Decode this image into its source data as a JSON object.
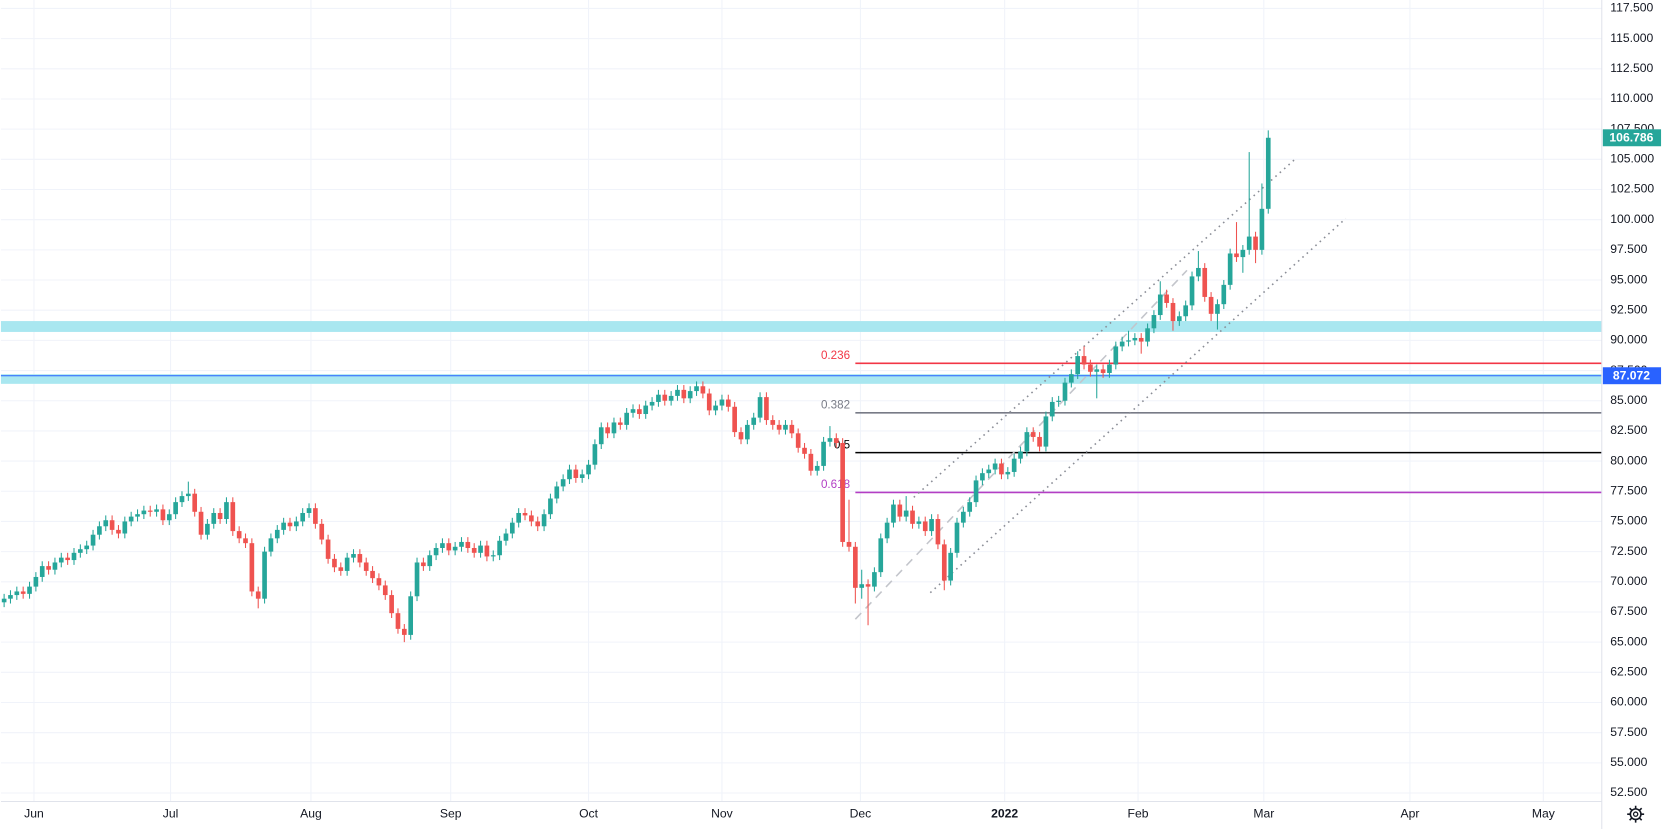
{
  "chart_data": {
    "type": "candlestick",
    "up_color": "#26a69a",
    "down_color": "#ef5350",
    "grid": true,
    "xlim": [
      -0.5,
      251.5
    ],
    "xticks": [
      {
        "value": 4.7,
        "label": "Jun"
      },
      {
        "value": 26.2,
        "label": "Jul"
      },
      {
        "value": 48.3,
        "label": "Aug"
      },
      {
        "value": 70.3,
        "label": "Sep"
      },
      {
        "value": 92,
        "label": "Oct"
      },
      {
        "value": 113,
        "label": "Nov"
      },
      {
        "value": 134.8,
        "label": "Dec"
      },
      {
        "value": 157.5,
        "label": "2022"
      },
      {
        "value": 178.5,
        "label": "Feb"
      },
      {
        "value": 198.3,
        "label": "Mar"
      },
      {
        "value": 221.3,
        "label": "Apr"
      },
      {
        "value": 242.3,
        "label": "May"
      }
    ],
    "ylim": [
      51.8,
      118.2
    ],
    "yticks": [
      {
        "value": 52.5,
        "label": "52.500"
      },
      {
        "value": 55,
        "label": "55.000"
      },
      {
        "value": 57.5,
        "label": "57.500"
      },
      {
        "value": 60,
        "label": "60.000"
      },
      {
        "value": 62.5,
        "label": "62.500"
      },
      {
        "value": 65,
        "label": "65.000"
      },
      {
        "value": 67.5,
        "label": "67.500"
      },
      {
        "value": 70,
        "label": "70.000"
      },
      {
        "value": 72.5,
        "label": "72.500"
      },
      {
        "value": 75,
        "label": "75.000"
      },
      {
        "value": 77.5,
        "label": "77.500"
      },
      {
        "value": 80,
        "label": "80.000"
      },
      {
        "value": 82.5,
        "label": "82.500"
      },
      {
        "value": 85,
        "label": "85.000"
      },
      {
        "value": 87.5,
        "label": "87.500"
      },
      {
        "value": 90,
        "label": "90.000"
      },
      {
        "value": 92.5,
        "label": "92.500"
      },
      {
        "value": 95,
        "label": "95.000"
      },
      {
        "value": 97.5,
        "label": "97.500"
      },
      {
        "value": 100,
        "label": "100.000"
      },
      {
        "value": 102.5,
        "label": "102.500"
      },
      {
        "value": 105,
        "label": "105.000"
      },
      {
        "value": 107.5,
        "label": "107.500"
      },
      {
        "value": 110,
        "label": "110.000"
      },
      {
        "value": 112.5,
        "label": "112.500"
      },
      {
        "value": 115,
        "label": "115.000"
      },
      {
        "value": 117.5,
        "label": "117.500"
      }
    ],
    "open": [
      68.3,
      68.6,
      68.9,
      69.2,
      69.0,
      69.6,
      70.4,
      71.3,
      71.0,
      71.6,
      72.0,
      71.8,
      72.4,
      72.7,
      73.0,
      73.9,
      74.6,
      75.1,
      74.3,
      74.0,
      75.0,
      75.4,
      75.6,
      75.9,
      75.8,
      76.0,
      75.1,
      75.6,
      76.6,
      77.1,
      77.3,
      75.8,
      73.9,
      74.8,
      75.7,
      75.2,
      76.6,
      74.2,
      73.6,
      73.2,
      69.2,
      68.6,
      72.5,
      73.6,
      74.3,
      74.9,
      74.6,
      75.0,
      75.7,
      76.1,
      74.8,
      73.5,
      71.9,
      71.2,
      70.9,
      72.0,
      72.3,
      71.6,
      70.9,
      70.3,
      69.7,
      68.9,
      67.4,
      66.1,
      65.6,
      68.8,
      71.6,
      71.3,
      72.2,
      72.8,
      73.2,
      72.6,
      72.9,
      73.3,
      72.8,
      72.4,
      73.0,
      72.1,
      72.2,
      73.4,
      74.0,
      74.9,
      75.7,
      75.5,
      75.0,
      74.6,
      75.6,
      76.9,
      77.9,
      78.5,
      79.3,
      78.6,
      78.9,
      79.7,
      81.4,
      82.8,
      82.3,
      83.2,
      83.0,
      84.0,
      84.3,
      83.9,
      84.6,
      84.9,
      85.5,
      85.0,
      85.4,
      85.9,
      85.2,
      85.8,
      86.2,
      85.6,
      84.2,
      84.6,
      85.1,
      84.5,
      82.4,
      81.8,
      83.0,
      83.6,
      85.3,
      83.4,
      83.0,
      82.6,
      83.0,
      82.3,
      81.1,
      80.6,
      79.2,
      79.6,
      81.6,
      81.9,
      81.5,
      73.3,
      72.9,
      69.5,
      69.8,
      69.6,
      70.8,
      73.6,
      74.9,
      76.4,
      75.4,
      75.9,
      74.8,
      75.0,
      74.2,
      75.2,
      73.1,
      70.1,
      72.4,
      74.9,
      75.8,
      76.6,
      78.4,
      79.0,
      79.3,
      79.8,
      78.9,
      79.1,
      80.2,
      80.8,
      82.4,
      82.0,
      81.2,
      83.7,
      84.9,
      85.0,
      86.5,
      87.2,
      88.7,
      88.0,
      87.4,
      87.6,
      87.3,
      88.0,
      89.5,
      89.9,
      90.0,
      90.2,
      89.9,
      91.0,
      92.1,
      93.8,
      93.1,
      91.6,
      92.0,
      92.9,
      95.3,
      96.0,
      93.6,
      92.2,
      93.0,
      94.6,
      97.2,
      96.9,
      97.5,
      98.6,
      97.5,
      100.9
    ],
    "high": [
      69.0,
      69.3,
      69.6,
      69.6,
      70.0,
      70.8,
      71.7,
      71.7,
      72.0,
      72.4,
      72.4,
      72.8,
      73.1,
      73.4,
      74.3,
      75.0,
      75.5,
      75.5,
      74.7,
      75.4,
      75.8,
      76.0,
      76.3,
      76.3,
      76.4,
      76.4,
      76.0,
      77.0,
      77.5,
      78.3,
      77.7,
      76.2,
      75.2,
      76.1,
      76.1,
      77.0,
      77.0,
      74.6,
      74.0,
      73.6,
      69.6,
      72.9,
      74.0,
      74.7,
      75.3,
      75.3,
      75.4,
      76.1,
      76.5,
      76.5,
      75.2,
      73.9,
      72.3,
      71.6,
      72.4,
      72.7,
      72.7,
      72.0,
      71.3,
      70.7,
      70.1,
      69.3,
      67.8,
      66.5,
      69.2,
      72.0,
      72.0,
      72.6,
      73.2,
      73.6,
      73.6,
      73.3,
      73.7,
      73.7,
      73.2,
      73.4,
      73.4,
      72.6,
      73.8,
      74.4,
      75.3,
      76.1,
      76.1,
      75.9,
      75.4,
      76.0,
      77.3,
      78.3,
      78.9,
      79.7,
      79.7,
      79.3,
      80.1,
      81.8,
      83.2,
      83.2,
      83.6,
      83.6,
      84.4,
      84.7,
      84.7,
      85.0,
      85.3,
      85.9,
      85.9,
      85.8,
      86.3,
      86.3,
      86.2,
      86.6,
      86.6,
      86.0,
      85.0,
      85.5,
      85.5,
      84.9,
      82.8,
      83.4,
      84.0,
      85.7,
      85.7,
      83.8,
      83.4,
      83.4,
      83.4,
      82.7,
      81.5,
      81.0,
      80.0,
      82.0,
      82.9,
      82.3,
      81.9,
      76.8,
      73.3,
      71.0,
      70.2,
      71.2,
      74.0,
      75.3,
      76.8,
      76.8,
      77.1,
      76.3,
      75.4,
      75.4,
      75.6,
      75.6,
      73.5,
      72.8,
      75.3,
      76.2,
      77.0,
      78.8,
      79.4,
      79.7,
      80.2,
      80.2,
      79.5,
      80.6,
      81.2,
      82.8,
      82.8,
      82.4,
      84.1,
      85.3,
      85.4,
      86.9,
      87.6,
      89.1,
      89.5,
      88.4,
      88.0,
      88.0,
      88.4,
      89.9,
      90.3,
      90.8,
      90.6,
      90.6,
      91.4,
      92.5,
      94.9,
      94.2,
      93.5,
      92.4,
      93.3,
      95.7,
      97.4,
      96.4,
      94.0,
      93.4,
      95.0,
      97.6,
      99.8,
      97.9,
      105.6,
      99.0,
      103.0,
      107.4
    ],
    "low": [
      67.9,
      68.2,
      68.5,
      68.6,
      68.6,
      69.2,
      70.0,
      70.6,
      70.6,
      71.2,
      71.4,
      71.4,
      72.0,
      72.3,
      72.6,
      73.5,
      74.2,
      73.9,
      73.6,
      73.6,
      74.6,
      75.0,
      75.2,
      75.4,
      75.4,
      74.7,
      74.7,
      75.2,
      76.2,
      76.7,
      75.4,
      73.5,
      73.5,
      74.4,
      74.8,
      74.8,
      73.8,
      73.2,
      72.8,
      68.8,
      67.8,
      68.2,
      72.1,
      73.2,
      73.9,
      74.2,
      74.2,
      74.6,
      75.3,
      74.4,
      73.1,
      71.5,
      70.8,
      70.5,
      70.5,
      71.6,
      71.2,
      70.5,
      69.9,
      69.3,
      68.5,
      67.0,
      65.7,
      65.0,
      65.2,
      68.4,
      70.9,
      70.9,
      71.8,
      72.4,
      72.2,
      72.2,
      72.5,
      72.4,
      72.0,
      72.0,
      71.7,
      71.7,
      71.8,
      73.0,
      73.6,
      74.5,
      75.1,
      74.6,
      74.2,
      74.2,
      75.2,
      76.5,
      77.5,
      78.1,
      78.2,
      78.2,
      78.5,
      79.3,
      81.0,
      81.9,
      81.9,
      82.6,
      82.6,
      83.6,
      83.5,
      83.5,
      84.2,
      84.5,
      84.6,
      84.6,
      85.0,
      84.8,
      84.8,
      85.4,
      85.2,
      83.8,
      83.8,
      84.2,
      84.1,
      82.0,
      81.4,
      81.4,
      82.6,
      83.2,
      83.0,
      82.6,
      82.2,
      82.2,
      81.9,
      80.7,
      80.2,
      78.8,
      78.8,
      79.2,
      81.2,
      81.1,
      72.9,
      72.5,
      68.2,
      68.6,
      66.4,
      69.2,
      70.4,
      73.2,
      74.5,
      75.0,
      75.0,
      74.4,
      74.4,
      73.8,
      73.8,
      72.7,
      69.3,
      69.7,
      72.0,
      74.5,
      75.4,
      76.2,
      78.0,
      78.6,
      78.9,
      78.5,
      78.5,
      78.7,
      79.8,
      80.4,
      81.6,
      80.8,
      80.8,
      83.3,
      84.5,
      84.6,
      86.1,
      86.8,
      87.6,
      87.0,
      85.2,
      86.9,
      86.9,
      87.6,
      89.1,
      89.5,
      89.6,
      88.9,
      89.5,
      90.6,
      91.7,
      92.7,
      90.8,
      91.2,
      91.6,
      92.5,
      94.9,
      93.2,
      91.6,
      90.9,
      92.6,
      94.2,
      96.5,
      95.6,
      97.1,
      96.4,
      97.1,
      100.5
    ],
    "close": [
      68.6,
      68.9,
      69.2,
      69.0,
      69.6,
      70.4,
      71.3,
      71.0,
      71.6,
      72.0,
      71.8,
      72.4,
      72.7,
      73.0,
      73.9,
      74.6,
      75.1,
      74.3,
      74.0,
      75.0,
      75.4,
      75.6,
      75.9,
      75.8,
      76.0,
      75.1,
      75.6,
      76.6,
      77.1,
      77.3,
      75.8,
      73.9,
      74.8,
      75.7,
      75.2,
      76.6,
      74.2,
      73.6,
      73.2,
      69.2,
      68.6,
      72.5,
      73.6,
      74.3,
      74.9,
      74.6,
      75.0,
      75.7,
      76.1,
      74.8,
      73.5,
      71.9,
      71.2,
      70.9,
      72.0,
      72.3,
      71.6,
      70.9,
      70.3,
      69.7,
      68.9,
      67.4,
      66.1,
      65.6,
      68.8,
      71.6,
      71.3,
      72.2,
      72.8,
      73.2,
      72.6,
      72.9,
      73.3,
      72.8,
      72.4,
      73.0,
      72.1,
      72.2,
      73.4,
      74.0,
      74.9,
      75.7,
      75.5,
      75.0,
      74.6,
      75.6,
      76.9,
      77.9,
      78.5,
      79.3,
      78.6,
      78.9,
      79.7,
      81.4,
      82.8,
      82.3,
      83.2,
      83.0,
      84.0,
      84.3,
      83.9,
      84.6,
      84.9,
      85.5,
      85.0,
      85.4,
      85.9,
      85.2,
      85.8,
      86.2,
      85.6,
      84.2,
      84.6,
      85.1,
      84.5,
      82.4,
      81.8,
      83.0,
      83.6,
      85.3,
      83.4,
      83.0,
      82.6,
      83.0,
      82.3,
      81.1,
      80.6,
      79.2,
      79.6,
      81.6,
      81.9,
      81.5,
      73.3,
      72.9,
      69.5,
      69.8,
      69.6,
      70.8,
      73.6,
      74.9,
      76.4,
      75.4,
      75.9,
      74.8,
      75.0,
      74.2,
      75.2,
      73.1,
      70.1,
      72.4,
      74.9,
      75.8,
      76.6,
      78.4,
      79.0,
      79.3,
      79.8,
      78.9,
      79.1,
      80.2,
      80.8,
      82.4,
      82.0,
      81.2,
      83.7,
      84.9,
      85.0,
      86.5,
      87.2,
      88.7,
      88.0,
      87.4,
      87.6,
      87.3,
      88.0,
      89.5,
      89.9,
      90.0,
      90.2,
      89.9,
      91.0,
      92.1,
      93.8,
      93.1,
      91.6,
      92.0,
      92.9,
      95.3,
      96.0,
      93.6,
      92.2,
      93.0,
      94.6,
      97.2,
      96.9,
      97.5,
      98.6,
      97.5,
      100.9,
      106.786
    ],
    "zones": [
      {
        "from": 90.7,
        "to": 91.6,
        "color": "#a9e7f0"
      },
      {
        "from": 86.4,
        "to": 87.2,
        "color": "#a9e7f0"
      }
    ],
    "horizontal_line": {
      "value": 87.072,
      "color": "#2962ff"
    },
    "fib_levels": [
      {
        "ratio": 0.236,
        "price": 88.1,
        "color": "#f23645"
      },
      {
        "ratio": 0.382,
        "price": 84.0,
        "color": "#787b86"
      },
      {
        "ratio": 0.5,
        "price": 80.7,
        "color": "#000000"
      },
      {
        "ratio": 0.618,
        "price": 77.4,
        "color": "#b33ec4"
      }
    ],
    "trendlines": [
      {
        "x": [
          143.2,
          203.2
        ],
        "y": [
          77.0,
          105.0
        ],
        "style": "dotted",
        "color": "#8a8d96"
      },
      {
        "x": [
          145.8,
          211.2
        ],
        "y": [
          69.1,
          100.1
        ],
        "style": "dotted",
        "color": "#8a8d96"
      },
      {
        "x": [
          134,
          186.2
        ],
        "y": [
          66.9,
          95.8
        ],
        "style": "dashed",
        "color": "#c3c5cb"
      }
    ]
  }
}
